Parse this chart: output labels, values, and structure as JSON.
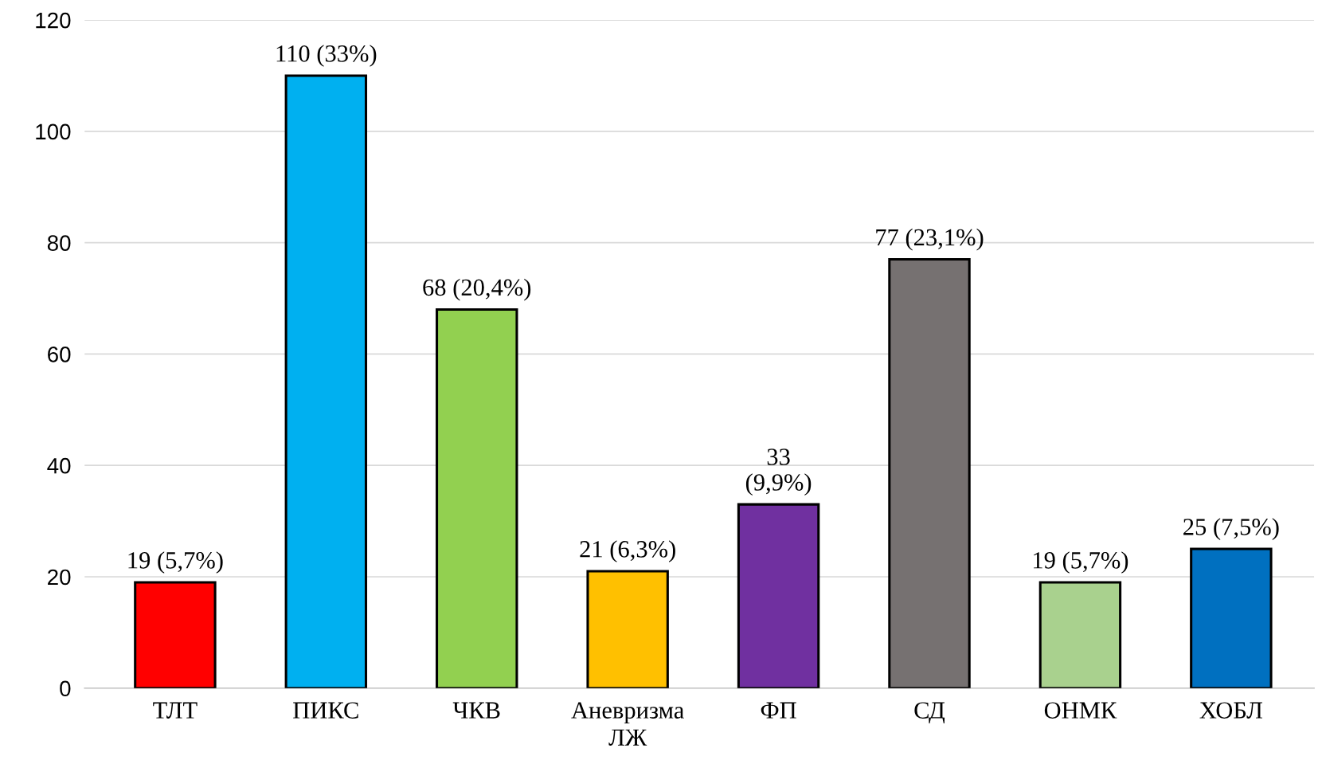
{
  "chart_data": {
    "type": "bar",
    "categories": [
      "ТЛТ",
      "ПИКС",
      "ЧКВ",
      "Аневризма\nЛЖ",
      "ФП",
      "СД",
      "ОНМК",
      "ХОБЛ"
    ],
    "values": [
      19,
      110,
      68,
      21,
      33,
      77,
      19,
      25
    ],
    "colors": [
      "#ff0000",
      "#00b0f0",
      "#92d050",
      "#ffc000",
      "#7030a0",
      "#767171",
      "#a9d18e",
      "#0070c0"
    ],
    "value_labels": [
      "19 (5,7%)",
      "110 (33%)",
      "68 (20,4%)",
      "21 (6,3%)",
      "33\n(9,9%)",
      "77 (23,1%)",
      "19 (5,7%)",
      "25 (7,5%)"
    ],
    "ylim": [
      0,
      120
    ],
    "yticks": [
      0,
      20,
      40,
      60,
      80,
      100,
      120
    ],
    "grid": "y",
    "legend": false
  }
}
